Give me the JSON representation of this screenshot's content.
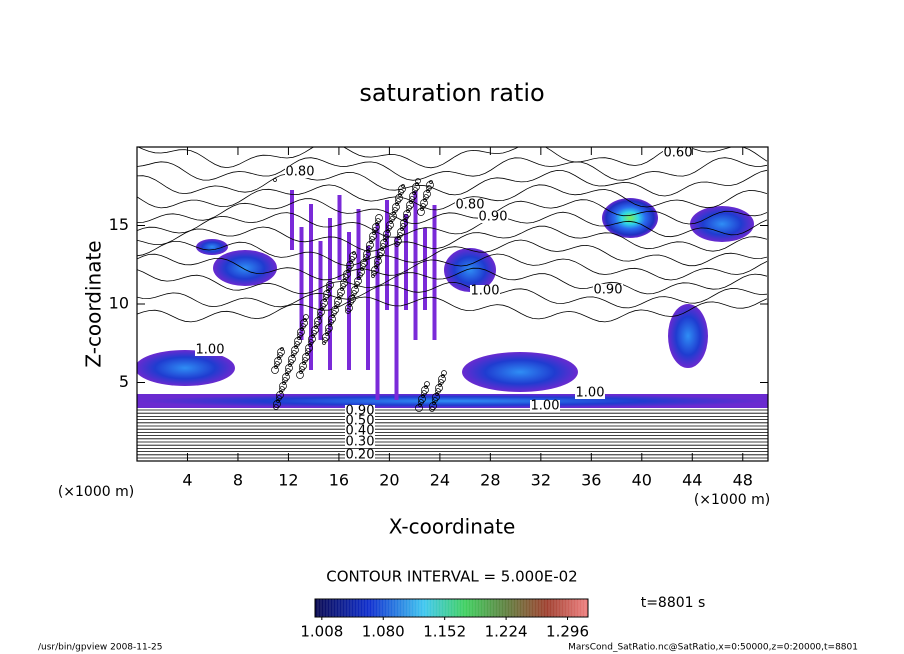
{
  "chart_data": {
    "type": "contour",
    "title": "saturation ratio",
    "x_label": "X-coordinate",
    "y_label": "Z-coordinate",
    "x_unit_label": "(×1000 m)",
    "xlim": [
      0,
      50
    ],
    "xticks": [
      4,
      8,
      12,
      16,
      20,
      24,
      28,
      32,
      36,
      40,
      44,
      48
    ],
    "ylim": [
      0,
      20
    ],
    "yticks": [
      5,
      10,
      15
    ],
    "contour_labels": [
      "0.60",
      "0.80",
      "0.80",
      "0.90",
      "0.90",
      "1.00",
      "1.00",
      "1.00",
      "1.00",
      "0.90",
      "0.50",
      "0.40",
      "0.30",
      "0.20"
    ],
    "colorbar": {
      "title": "CONTOUR INTERVAL = 5.000E-02",
      "lim": [
        1.0,
        1.32
      ],
      "ticks": [
        1.008,
        {
          "value": 1.08,
          "label": "1.080"
        },
        1.152,
        1.224,
        1.296
      ]
    },
    "time_label": "t=8801 s",
    "footer_left": "/usr/bin/gpview  2008-11-25",
    "footer_right": "MarsCond_SatRatio.nc@SatRatio,x=0:50000,z=0:20000,t=8801"
  }
}
